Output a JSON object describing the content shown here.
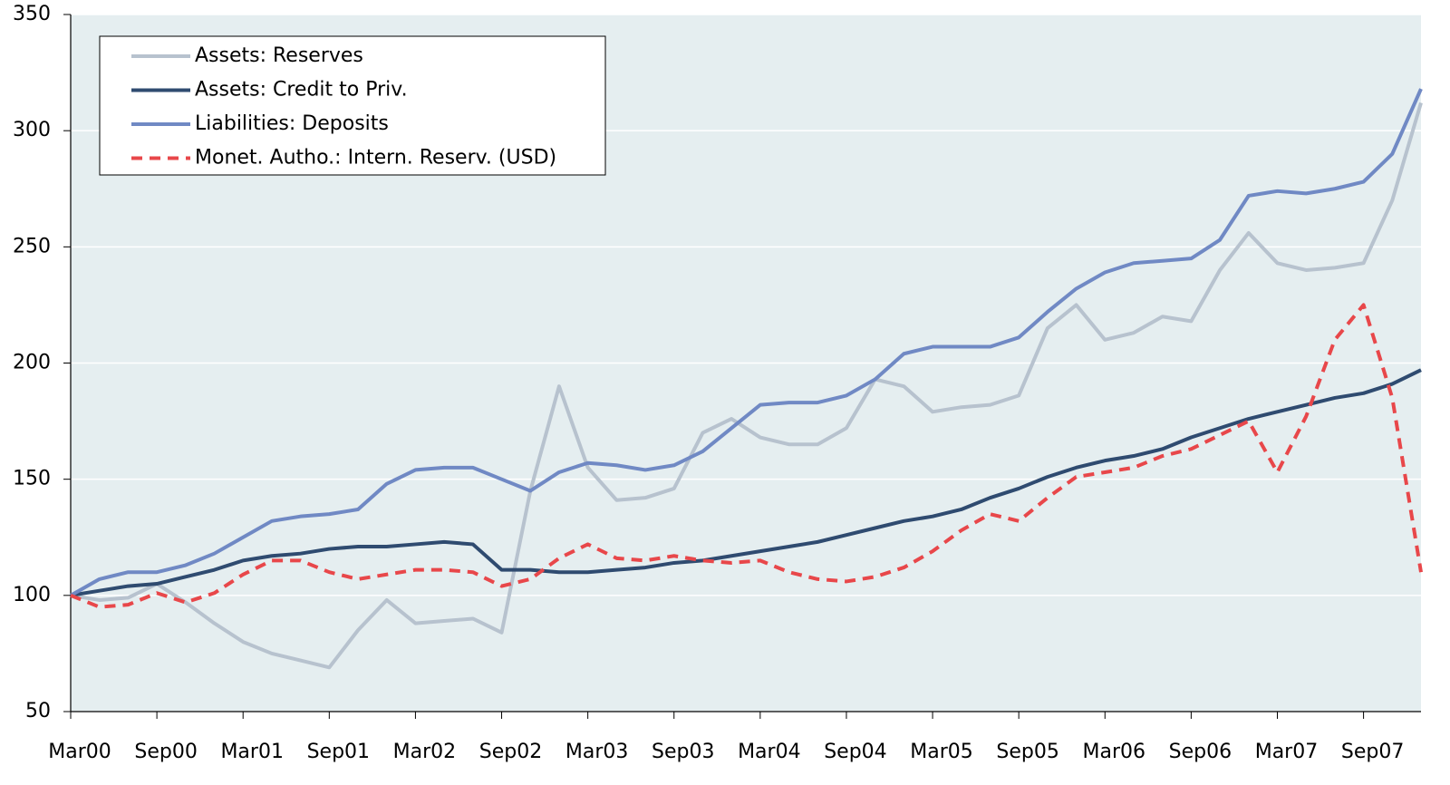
{
  "chart_data": {
    "type": "line",
    "categories": [
      "Mar00",
      null,
      null,
      "Sep00",
      null,
      null,
      "Mar01",
      null,
      null,
      "Sep01",
      null,
      null,
      "Mar02",
      null,
      null,
      "Sep02",
      null,
      null,
      "Mar03",
      null,
      null,
      "Sep03",
      null,
      null,
      "Mar04",
      null,
      null,
      "Sep04",
      null,
      null,
      "Mar05",
      null,
      null,
      "Sep05",
      null,
      null,
      "Mar06",
      null,
      null,
      "Sep06",
      null,
      null,
      "Mar07",
      null,
      null,
      "Sep07",
      null,
      null
    ],
    "series": [
      {
        "name": "Assets: Reserves",
        "color": "#b7c2ce",
        "dashed": false,
        "values": [
          100,
          98,
          99,
          105,
          97,
          88,
          80,
          75,
          72,
          69,
          85,
          98,
          88,
          89,
          90,
          84,
          145,
          190,
          155,
          141,
          142,
          146,
          170,
          176,
          168,
          165,
          165,
          172,
          193,
          190,
          179,
          181,
          182,
          186,
          215,
          225,
          210,
          213,
          220,
          218,
          240,
          256,
          243,
          240,
          241,
          243,
          270,
          312
        ]
      },
      {
        "name": "Assets: Credit to Priv.",
        "color": "#2f4b70",
        "dashed": false,
        "values": [
          100,
          102,
          104,
          105,
          108,
          111,
          115,
          117,
          118,
          120,
          121,
          121,
          122,
          123,
          122,
          111,
          111,
          110,
          110,
          111,
          112,
          114,
          115,
          117,
          119,
          121,
          123,
          126,
          129,
          132,
          134,
          137,
          142,
          146,
          151,
          155,
          158,
          160,
          163,
          168,
          172,
          176,
          179,
          182,
          185,
          187,
          191,
          197
        ]
      },
      {
        "name": "Liabilities: Deposits",
        "color": "#7089c4",
        "dashed": false,
        "values": [
          100,
          107,
          110,
          110,
          113,
          118,
          125,
          132,
          134,
          135,
          137,
          148,
          154,
          155,
          155,
          150,
          145,
          153,
          157,
          156,
          154,
          156,
          162,
          172,
          182,
          183,
          183,
          186,
          193,
          204,
          207,
          207,
          207,
          211,
          222,
          232,
          239,
          243,
          244,
          245,
          253,
          272,
          274,
          273,
          275,
          278,
          290,
          318
        ]
      },
      {
        "name": "Monet. Autho.: Intern. Reserv. (USD)",
        "color": "#e8474a",
        "dashed": true,
        "values": [
          100,
          95,
          96,
          101,
          97,
          101,
          109,
          115,
          115,
          110,
          107,
          109,
          111,
          111,
          110,
          104,
          107,
          116,
          122,
          116,
          115,
          117,
          115,
          114,
          115,
          110,
          107,
          106,
          108,
          112,
          119,
          128,
          135,
          132,
          142,
          151,
          153,
          155,
          160,
          163,
          169,
          175,
          153,
          177,
          210,
          225,
          185,
          110
        ]
      }
    ],
    "ylim": [
      50,
      350
    ],
    "yticks": [
      50,
      100,
      150,
      200,
      250,
      300,
      350
    ],
    "grid": true,
    "legend": "upper left"
  }
}
